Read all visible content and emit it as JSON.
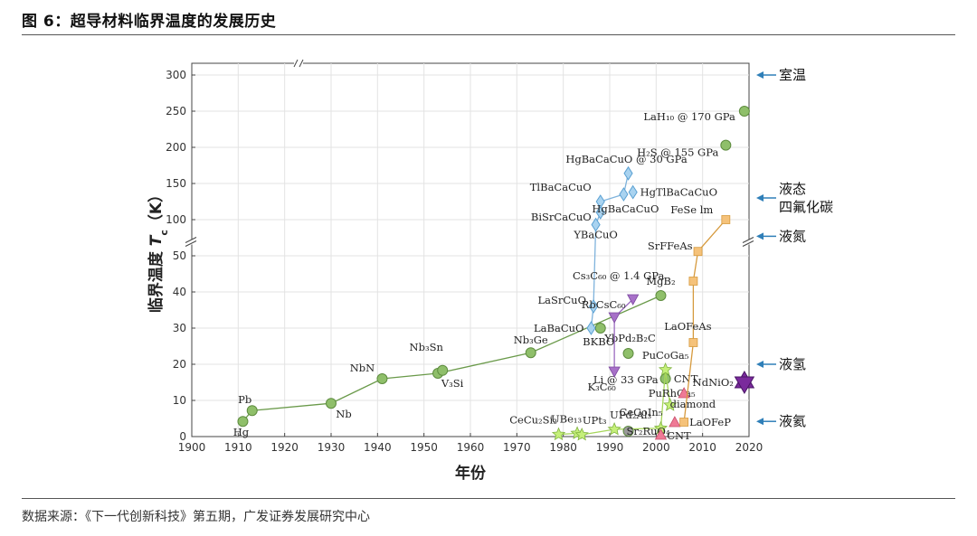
{
  "header": {
    "title": "图 6：超导材料临界温度的发展历史"
  },
  "footer": {
    "source": "数据来源：《下一代创新科技》第五期，广发证券发展研究中心"
  },
  "colors": {
    "conventional": "#8fbf6a",
    "conventional_stroke": "#5e8c3f",
    "heavy_fermion": "#c5ef7a",
    "cuprate": "#a9d3f0",
    "cuprate_stroke": "#5aa0d2",
    "fullerene": "#a770c8",
    "carbon": "#ef7a96",
    "iron": "#f5c27a",
    "iron_line": "#d69a3e",
    "nickelate": "#7a2a9c",
    "gray": "#9a9a9a",
    "arrow": "#2f7fb8"
  },
  "chart_data": {
    "type": "scatter",
    "xlabel": "年份",
    "ylabel": "临界温度 T_c（K）",
    "xlim": [
      1900,
      2020
    ],
    "xticks": [
      1900,
      1910,
      1920,
      1930,
      1940,
      1950,
      1960,
      1970,
      1980,
      1990,
      2000,
      2010,
      2020
    ],
    "yticks_lower": [
      0,
      10,
      20,
      30,
      40,
      50
    ],
    "yticks_upper": [
      100,
      150,
      200,
      250,
      300
    ],
    "y_axis_break": true,
    "grid": true,
    "reference_lines": [
      {
        "label": "室温",
        "y": 300
      },
      {
        "label": "液态\n四氟化碳",
        "y": 130
      },
      {
        "label": "液氮",
        "y": 77
      },
      {
        "label": "液氢",
        "y": 20
      },
      {
        "label": "液氦",
        "y": 4.2
      }
    ],
    "series": [
      {
        "group": "conventional",
        "marker": "circle",
        "connected": true,
        "points": [
          {
            "label": "Hg",
            "x": 1911,
            "y": 4.2
          },
          {
            "label": "Pb",
            "x": 1913,
            "y": 7.2
          },
          {
            "label": "Nb",
            "x": 1930,
            "y": 9.2
          },
          {
            "label": "NbN",
            "x": 1941,
            "y": 16
          },
          {
            "label": "V₃Si",
            "x": 1953,
            "y": 17.5
          },
          {
            "label": "Nb₃Sn",
            "x": 1954,
            "y": 18.3
          },
          {
            "label": "Nb₃Ge",
            "x": 1973,
            "y": 23.2
          },
          {
            "label": "MgB₂",
            "x": 2001,
            "y": 39
          }
        ]
      },
      {
        "group": "conventional",
        "marker": "circle",
        "connected": false,
        "points": [
          {
            "label": "BKBO",
            "x": 1988,
            "y": 30
          },
          {
            "label": "YbPd₂B₂C",
            "x": 1994,
            "y": 23
          },
          {
            "label": "Li @ 33 GPa",
            "x": 2002,
            "y": 16
          },
          {
            "label": "H₂S @ 155 GPa",
            "x": 2015,
            "y": 203
          },
          {
            "label": "LaH₁₀ @ 170 GPa",
            "x": 2019,
            "y": 250
          }
        ]
      },
      {
        "group": "heavy_fermion",
        "marker": "star",
        "connected": true,
        "points": [
          {
            "label": "CeCu₂Si₂",
            "x": 1979,
            "y": 0.6
          },
          {
            "label": "UBe₁₃",
            "x": 1983,
            "y": 0.9
          },
          {
            "label": "UPt₃",
            "x": 1984,
            "y": 0.5
          },
          {
            "label": "UPd₂Al₃",
            "x": 1991,
            "y": 2
          },
          {
            "label": "CeCoIn₅",
            "x": 2001,
            "y": 2.3
          },
          {
            "label": "PuCoGa₅",
            "x": 2002,
            "y": 18.5
          },
          {
            "label": "PuRhGa₅",
            "x": 2003,
            "y": 8.7
          }
        ]
      },
      {
        "group": "gray",
        "marker": "circle",
        "connected": false,
        "points": [
          {
            "label": "Sr₂RuO₄",
            "x": 1994,
            "y": 1.5
          }
        ]
      },
      {
        "group": "cuprate",
        "marker": "diamond",
        "connected": true,
        "points": [
          {
            "label": "LaBaCuO",
            "x": 1986,
            "y": 30
          },
          {
            "label": "LaSrCuO",
            "x": 1986.5,
            "y": 36
          },
          {
            "label": "YBaCuO",
            "x": 1987,
            "y": 93
          },
          {
            "label": "BiSrCaCuO",
            "x": 1988,
            "y": 110
          },
          {
            "label": "TlBaCaCuO",
            "x": 1988,
            "y": 125
          },
          {
            "label": "HgBaCaCuO",
            "x": 1993,
            "y": 135
          },
          {
            "label": "HgTlBaCaCuO",
            "x": 1995,
            "y": 138
          },
          {
            "label": "HgBaCaCuO @ 30 GPa",
            "x": 1994,
            "y": 164
          }
        ]
      },
      {
        "group": "fullerene",
        "marker": "triangle-down",
        "connected": true,
        "points": [
          {
            "label": "K₃C₆₀",
            "x": 1991,
            "y": 18
          },
          {
            "label": "RbCsC₆₀",
            "x": 1991,
            "y": 33
          },
          {
            "label": "Cs₃C₆₀ @ 1.4 GPa",
            "x": 1995,
            "y": 38
          }
        ]
      },
      {
        "group": "carbon",
        "marker": "triangle-up",
        "connected": false,
        "points": [
          {
            "label": "CNT",
            "x": 2001,
            "y": 0.5
          },
          {
            "label": "diamond",
            "x": 2004,
            "y": 4
          },
          {
            "label": "CNT",
            "x": 2006,
            "y": 12
          }
        ]
      },
      {
        "group": "iron",
        "marker": "square",
        "connected": true,
        "points": [
          {
            "label": "LaOFeP",
            "x": 2006,
            "y": 4
          },
          {
            "label": "LaOFeAs",
            "x": 2008,
            "y": 26
          },
          {
            "label": "",
            "x": 2008,
            "y": 43
          },
          {
            "label": "SrFFeAs",
            "x": 2009,
            "y": 56
          },
          {
            "label": "FeSe  lm",
            "x": 2015,
            "y": 100
          }
        ]
      },
      {
        "group": "nickelate",
        "marker": "hexagram",
        "connected": false,
        "points": [
          {
            "label": "NdNiO₂",
            "x": 2019,
            "y": 15
          }
        ]
      }
    ]
  }
}
